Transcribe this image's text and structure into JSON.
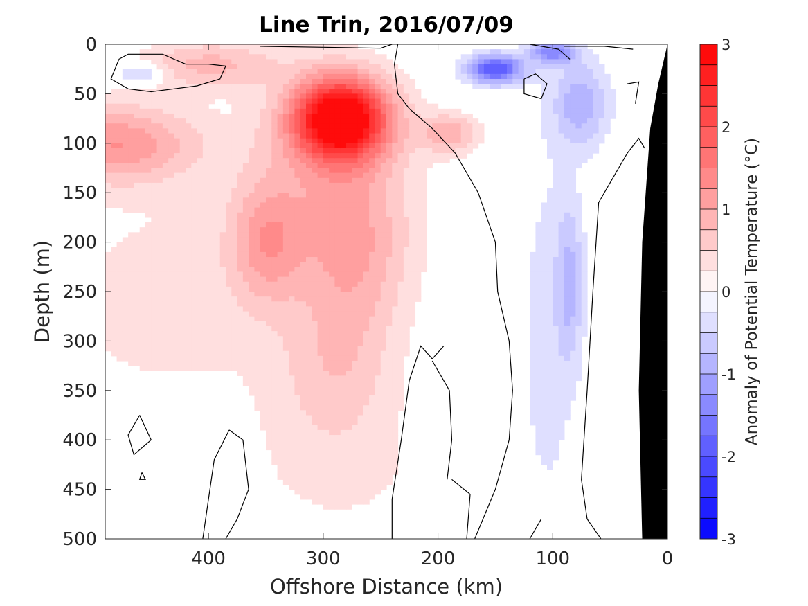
{
  "chart_data": {
    "type": "heatmap",
    "title": "Line Trin, 2016/07/09",
    "xlabel": "Offshore Distance (km)",
    "ylabel": "Depth (m)",
    "xlim": [
      490,
      0
    ],
    "ylim": [
      0,
      500
    ],
    "x_reversed": true,
    "y_reversed": true,
    "xticks": [
      400,
      300,
      200,
      100,
      0
    ],
    "yticks": [
      0,
      50,
      100,
      150,
      200,
      250,
      300,
      350,
      400,
      450,
      500
    ],
    "grid": false,
    "colorbar": {
      "label": "Anomaly of Potential Temperature (°C)",
      "range": [
        -3,
        3
      ],
      "ticks": [
        3,
        2,
        1,
        0,
        -1,
        -2,
        -3
      ],
      "levels": 24,
      "low_color": "#0000ff",
      "mid_color": "#ffffff",
      "high_color": "#ff0000"
    },
    "field": [
      {
        "x": 285,
        "depth": 75,
        "sx": 42,
        "sz": 42,
        "value": 3.2
      },
      {
        "x": 295,
        "depth": 150,
        "sx": 75,
        "sz": 110,
        "value": 0.7
      },
      {
        "x": 270,
        "depth": 220,
        "sx": 45,
        "sz": 90,
        "value": 0.6
      },
      {
        "x": 290,
        "depth": 330,
        "sx": 50,
        "sz": 70,
        "value": 0.5
      },
      {
        "x": 480,
        "depth": 100,
        "sx": 70,
        "sz": 40,
        "value": 1.2
      },
      {
        "x": 350,
        "depth": 200,
        "sx": 30,
        "sz": 60,
        "value": 0.8
      },
      {
        "x": 190,
        "depth": 90,
        "sx": 25,
        "sz": 20,
        "value": 0.9
      },
      {
        "x": 285,
        "depth": 430,
        "sx": 90,
        "sz": 80,
        "value": 0.3
      },
      {
        "x": 440,
        "depth": 260,
        "sx": 120,
        "sz": 120,
        "value": 0.35
      },
      {
        "x": 400,
        "depth": 20,
        "sx": 60,
        "sz": 25,
        "value": 0.8
      },
      {
        "x": 150,
        "depth": 25,
        "sx": 25,
        "sz": 15,
        "value": -2.0
      },
      {
        "x": 100,
        "depth": 8,
        "sx": 20,
        "sz": 12,
        "value": -1.3
      },
      {
        "x": 75,
        "depth": 60,
        "sx": 25,
        "sz": 45,
        "value": -0.9
      },
      {
        "x": 85,
        "depth": 240,
        "sx": 12,
        "sz": 80,
        "value": -0.7
      },
      {
        "x": 460,
        "depth": 30,
        "sx": 20,
        "sz": 10,
        "value": -0.8
      },
      {
        "x": 105,
        "depth": 300,
        "sx": 30,
        "sz": 230,
        "value": -0.35
      }
    ],
    "zero_contours": [
      [
        [
          478,
          15
        ],
        [
          470,
          10
        ],
        [
          440,
          10
        ],
        [
          420,
          20
        ],
        [
          400,
          20
        ],
        [
          385,
          22
        ],
        [
          390,
          35
        ],
        [
          410,
          42
        ],
        [
          430,
          45
        ],
        [
          450,
          48
        ],
        [
          470,
          45
        ],
        [
          485,
          35
        ],
        [
          478,
          15
        ]
      ],
      [
        [
          235,
          0
        ],
        [
          238,
          20
        ],
        [
          235,
          50
        ],
        [
          225,
          65
        ],
        [
          205,
          85
        ],
        [
          185,
          110
        ],
        [
          165,
          150
        ],
        [
          150,
          200
        ],
        [
          148,
          250
        ],
        [
          138,
          300
        ],
        [
          135,
          350
        ],
        [
          138,
          400
        ],
        [
          150,
          450
        ],
        [
          168,
          500
        ]
      ],
      [
        [
          240,
          0
        ],
        [
          250,
          4
        ],
        [
          300,
          3
        ],
        [
          355,
          2
        ]
      ],
      [
        [
          195,
          305
        ],
        [
          205,
          318
        ],
        [
          215,
          305
        ],
        [
          225,
          340
        ],
        [
          232,
          400
        ],
        [
          240,
          460
        ],
        [
          240,
          500
        ]
      ],
      [
        [
          188,
          440
        ],
        [
          172,
          455
        ],
        [
          175,
          500
        ]
      ],
      [
        [
          205,
          320
        ],
        [
          190,
          350
        ],
        [
          188,
          400
        ],
        [
          192,
          440
        ]
      ],
      [
        [
          382,
          390
        ],
        [
          370,
          400
        ],
        [
          365,
          450
        ],
        [
          375,
          480
        ],
        [
          385,
          500
        ]
      ],
      [
        [
          382,
          390
        ],
        [
          395,
          420
        ],
        [
          400,
          460
        ],
        [
          405,
          500
        ]
      ],
      [
        [
          460,
          375
        ],
        [
          470,
          395
        ],
        [
          465,
          415
        ],
        [
          450,
          400
        ],
        [
          460,
          375
        ]
      ],
      [
        [
          458,
          433
        ],
        [
          455,
          440
        ],
        [
          460,
          440
        ],
        [
          458,
          433
        ]
      ],
      [
        [
          125,
          35
        ],
        [
          115,
          30
        ],
        [
          105,
          40
        ],
        [
          110,
          55
        ],
        [
          125,
          50
        ],
        [
          125,
          35
        ]
      ],
      [
        [
          35,
          40
        ],
        [
          25,
          38
        ],
        [
          28,
          60
        ]
      ],
      [
        [
          20,
          105
        ],
        [
          25,
          95
        ],
        [
          35,
          110
        ],
        [
          50,
          140
        ],
        [
          60,
          160
        ],
        [
          65,
          250
        ],
        [
          70,
          350
        ],
        [
          75,
          440
        ],
        [
          70,
          480
        ],
        [
          58,
          500
        ]
      ],
      [
        [
          30,
          5
        ],
        [
          55,
          2
        ],
        [
          90,
          2
        ]
      ],
      [
        [
          120,
          0
        ],
        [
          95,
          5
        ],
        [
          85,
          15
        ]
      ],
      [
        [
          110,
          480
        ],
        [
          120,
          500
        ]
      ]
    ],
    "land_mask": [
      [
        22,
        500
      ],
      [
        0,
        500
      ],
      [
        0,
        0
      ],
      [
        8,
        40
      ],
      [
        15,
        85
      ],
      [
        22,
        200
      ],
      [
        25,
        350
      ],
      [
        22,
        500
      ]
    ]
  }
}
